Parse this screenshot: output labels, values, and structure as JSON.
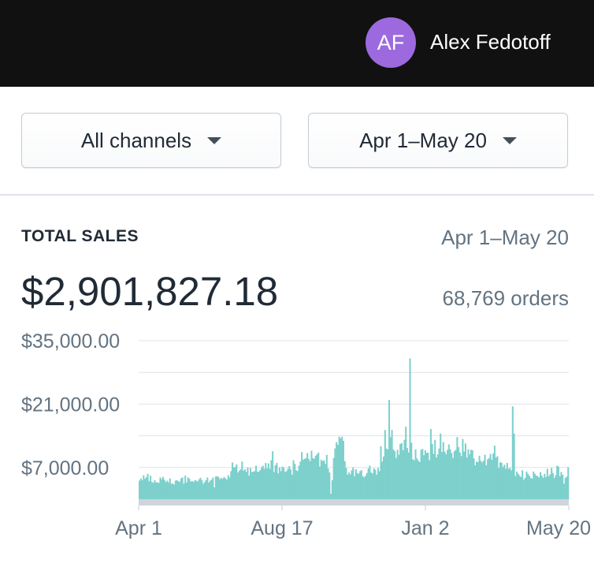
{
  "header": {
    "avatar_initials": "AF",
    "user_name": "Alex Fedotoff",
    "avatar_color": "#9c6ade"
  },
  "filters": {
    "channel": "All channels",
    "date_range": "Apr 1–May 20"
  },
  "card": {
    "title": "TOTAL SALES",
    "date_range": "Apr 1–May 20",
    "total": "$2,901,827.18",
    "orders": "68,769 orders"
  },
  "chart_data": {
    "type": "bar",
    "title": "TOTAL SALES",
    "xlabel": "",
    "ylabel": "",
    "x_ticks": [
      "Apr 1",
      "Aug 17",
      "Jan 2",
      "May 20"
    ],
    "y_ticks": [
      "$35,000.00",
      "$21,000.00",
      "$7,000.00"
    ],
    "ylim": [
      0,
      35000
    ],
    "grid": true,
    "color": "#7dd0cc",
    "baseline_color": "#d0d5da",
    "values": [
      4100,
      4600,
      4200,
      5300,
      4500,
      4900,
      5600,
      4000,
      5200,
      3800,
      3600,
      4200,
      3700,
      3700,
      3600,
      4800,
      4400,
      4900,
      4300,
      3800,
      4100,
      3700,
      4600,
      3400,
      3500,
      3200,
      4100,
      4200,
      4000,
      3800,
      4600,
      4800,
      3400,
      5200,
      3700,
      4800,
      4500,
      3900,
      4000,
      3800,
      4200,
      4100,
      3900,
      4400,
      4700,
      4200,
      3400,
      3800,
      4200,
      4800,
      3700,
      4100,
      4300,
      4800,
      2600,
      5000,
      5100,
      4900,
      4400,
      4700,
      4500,
      4900,
      4600,
      4300,
      5300,
      4800,
      6200,
      8100,
      7000,
      7100,
      7700,
      5900,
      6300,
      6600,
      8300,
      6300,
      6600,
      6000,
      7000,
      5200,
      6900,
      6000,
      6100,
      6200,
      7400,
      6100,
      6100,
      6400,
      7000,
      7400,
      6700,
      8000,
      6800,
      7900,
      6700,
      8600,
      10600,
      6000,
      7500,
      8000,
      5700,
      7000,
      6200,
      7200,
      6900,
      6000,
      6200,
      6700,
      7300,
      6600,
      5400,
      8600,
      7800,
      6400,
      6200,
      7400,
      8300,
      10400,
      8700,
      8900,
      9100,
      10200,
      8900,
      8400,
      10700,
      9100,
      8900,
      9600,
      9900,
      10300,
      7200,
      8700,
      8400,
      8600,
      7800,
      9800,
      6800,
      5900,
      1200,
      4200,
      9100,
      11200,
      12600,
      12000,
      13800,
      13400,
      13800,
      12900,
      8400,
      6900,
      5400,
      5900,
      5500,
      6400,
      7000,
      5100,
      6600,
      5800,
      5600,
      6200,
      6400,
      5100,
      4800,
      5200,
      5800,
      6800,
      7400,
      5900,
      5700,
      6800,
      6500,
      5400,
      6900,
      6200,
      11700,
      8300,
      9400,
      15300,
      11200,
      11000,
      21900,
      13700,
      15300,
      11000,
      10600,
      9100,
      10900,
      9800,
      12200,
      12400,
      10800,
      13100,
      16000,
      11300,
      10300,
      31100,
      12500,
      8800,
      8600,
      11000,
      9000,
      8500,
      8200,
      10900,
      11100,
      9700,
      10800,
      10200,
      10300,
      8600,
      15500,
      12200,
      10000,
      13100,
      9200,
      9900,
      11200,
      14500,
      10400,
      12600,
      10500,
      9900,
      10900,
      12100,
      11000,
      10200,
      9100,
      10600,
      10900,
      13700,
      11500,
      10300,
      9500,
      13300,
      10500,
      12300,
      9200,
      11000,
      9900,
      10900,
      10800,
      9000,
      7500,
      8300,
      8200,
      9600,
      8500,
      8100,
      8500,
      9800,
      7500,
      8800,
      9100,
      10000,
      8700,
      10100,
      11800,
      9200,
      9500,
      6900,
      8200,
      8000,
      7100,
      7600,
      6700,
      8000,
      6700,
      6900,
      6400,
      20500,
      14500,
      5100,
      6100,
      5600,
      5200,
      4900,
      6400,
      4300,
      4700,
      6100,
      5600,
      5200,
      4700,
      4500,
      6100,
      5600,
      5200,
      5100,
      4800,
      6000,
      5200,
      4700,
      5600,
      4900,
      6700,
      5100,
      5500,
      6900,
      5800,
      4700,
      5300,
      7400,
      7200,
      5100,
      6000,
      5400,
      3400,
      4700,
      5000,
      7100
    ]
  }
}
